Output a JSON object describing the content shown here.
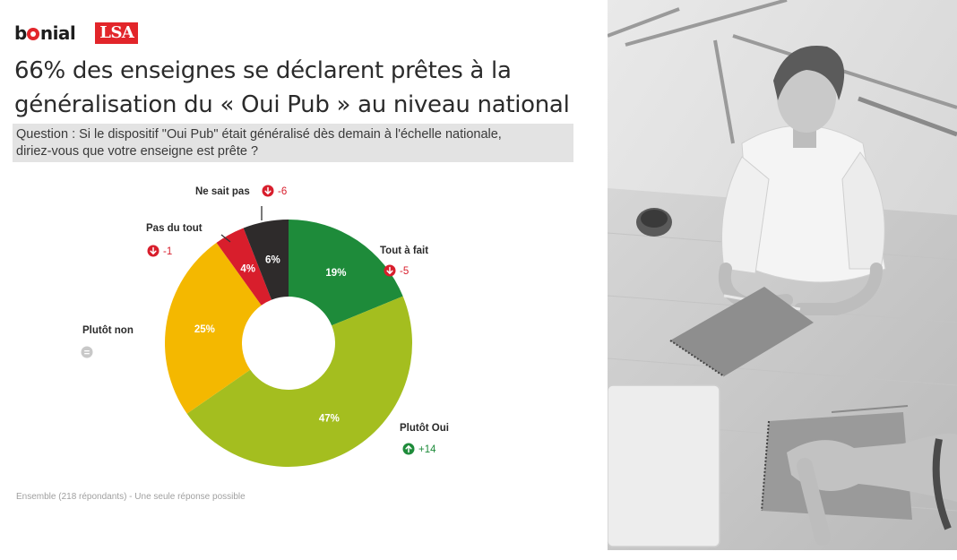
{
  "brand": {
    "bonial": "bonial",
    "lsa": "LSA"
  },
  "title": {
    "line1": "66% des enseignes se déclarent prêtes à la",
    "line2": "généralisation du « Oui Pub » au niveau national"
  },
  "question": {
    "line1": "Question : Si le dispositif \"Oui Pub\" était généralisé dès demain à l'échelle nationale,",
    "line2": "diriez-vous que votre enseigne est prête ?"
  },
  "chart_data": {
    "type": "pie",
    "subtype": "donut",
    "start": "top",
    "direction": "clockwise",
    "categories": [
      "Tout à fait",
      "Plutôt Oui",
      "Plutôt non",
      "Pas du tout",
      "Ne sait pas"
    ],
    "values": [
      19,
      47,
      25,
      4,
      6
    ],
    "value_labels": [
      "19%",
      "47%",
      "25%",
      "4%",
      "6%"
    ],
    "colors": [
      "#1e8b3a",
      "#a4be1f",
      "#f4b800",
      "#d81e2c",
      "#2e2b2b"
    ],
    "changes": [
      {
        "label": "-5",
        "direction": "down"
      },
      {
        "label": "+14",
        "direction": "up"
      },
      {
        "label": "=",
        "direction": "equal"
      },
      {
        "label": "-1",
        "direction": "down"
      },
      {
        "label": "-6",
        "direction": "down"
      }
    ],
    "change_colors": {
      "down": "#d81e2c",
      "up": "#1e8b3a",
      "equal": "#c8c8c8"
    }
  },
  "footnote": "Ensemble (218 répondants) - Une seule réponse possible"
}
